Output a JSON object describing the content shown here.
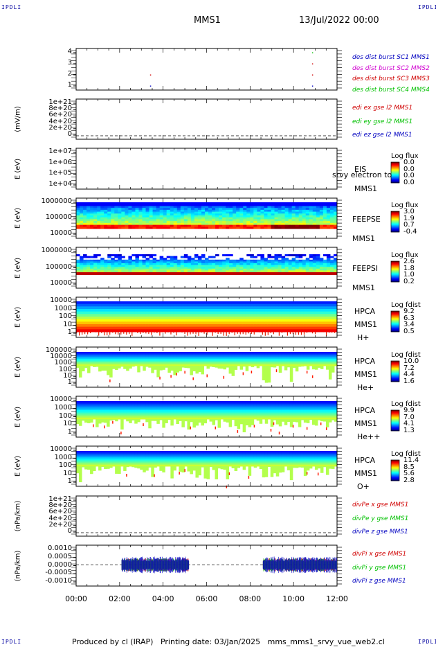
{
  "header": {
    "corner_left": "IPDLI",
    "corner_right": "IPDLI",
    "mission": "MMS1",
    "datetime": "13/Jul/2022 00:00"
  },
  "footer": {
    "text": "Produced by cl (IRAP)   Printing date: 03/Jan/2025   mms_mms1_srvy_vue_web2.cl"
  },
  "chart_data": {
    "type": "multi-panel",
    "x_ticks": [
      "00:00",
      "02:00",
      "04:00",
      "06:00",
      "08:00",
      "10:00",
      "12:00"
    ],
    "x_range_hours": [
      0,
      12
    ],
    "colors": {
      "red": "#d00000",
      "magenta": "#d000d0",
      "green": "#00c000",
      "blue": "#0000c0"
    },
    "panels": [
      {
        "id": "burst",
        "ylabel": "",
        "yticks": [
          "4",
          "3",
          "2",
          "1"
        ],
        "ylim": [
          0.5,
          4.5
        ],
        "legend": [
          {
            "text": "des dist burst SC1 MMS1",
            "color": "#0000c0"
          },
          {
            "text": "des dist burst SC2 MMS2",
            "color": "#d000d0"
          },
          {
            "text": "des dist burst SC3 MMS3",
            "color": "#d00000"
          },
          {
            "text": "des dist burst SC4 MMS4",
            "color": "#00c000"
          }
        ],
        "points": [
          {
            "t": 3.4,
            "y": 1,
            "sc": 1
          },
          {
            "t": 3.4,
            "y": 2,
            "sc": 3
          },
          {
            "t": 10.85,
            "y": 1,
            "sc": 1
          },
          {
            "t": 10.85,
            "y": 2,
            "sc": 3
          },
          {
            "t": 10.85,
            "y": 3,
            "sc": 3
          },
          {
            "t": 10.85,
            "y": 4,
            "sc": 4
          }
        ]
      },
      {
        "id": "edi",
        "ylabel": "(mV/m)",
        "yticks": [
          "1e+21",
          "8e+20",
          "6e+20",
          "4e+20",
          "2e+20",
          "0"
        ],
        "ylim": [
          0,
          1e+21
        ],
        "legend": [
          {
            "text": "edi ex gse l2 MMS1",
            "color": "#d00000"
          },
          {
            "text": "edi ey gse l2 MMS1",
            "color": "#00c000"
          },
          {
            "text": "edi ez gse l2 MMS1",
            "color": "#0000c0"
          }
        ]
      },
      {
        "id": "eis",
        "ylabel": "E (eV)",
        "yticks": [
          "1e+07",
          "1e+06",
          "1e+05",
          "1e+04"
        ],
        "labels": [
          "EIS",
          "srvy electron to",
          "MMS1"
        ],
        "cb_title": "Log flux",
        "cb_ticks": [
          "0.0",
          "0.0",
          "0.0",
          "0.0"
        ]
      },
      {
        "id": "feepse",
        "ylabel": "E (eV)",
        "yticks": [
          "1000000",
          "100000",
          "10000"
        ],
        "labels": [
          "FEEPSE",
          "MMS1"
        ],
        "cb_title": "Log flux",
        "cb_ticks": [
          "3.0",
          "1.9",
          "0.7",
          "-0.4"
        ]
      },
      {
        "id": "feepsi",
        "ylabel": "E (eV)",
        "yticks": [
          "1000000",
          "100000",
          "10000"
        ],
        "labels": [
          "FEEPSI",
          "MMS1"
        ],
        "cb_title": "Log flux",
        "cb_ticks": [
          "2.6",
          "1.8",
          "1.0",
          "0.2"
        ]
      },
      {
        "id": "hpca_h",
        "ylabel": "E (eV)",
        "yticks": [
          "10000",
          "1000",
          "100",
          "10",
          "1"
        ],
        "labels": [
          "HPCA",
          "MMS1",
          "H+"
        ],
        "cb_title": "Log fdist",
        "cb_ticks": [
          "9.2",
          "6.3",
          "3.4",
          "0.5"
        ]
      },
      {
        "id": "hpca_he",
        "ylabel": "E (eV)",
        "yticks": [
          "100000",
          "10000",
          "1000",
          "100",
          "10",
          "1"
        ],
        "labels": [
          "HPCA",
          "MMS1",
          "He+"
        ],
        "cb_title": "Log fdist",
        "cb_ticks": [
          "10.0",
          "7.2",
          "4.4",
          "1.6"
        ]
      },
      {
        "id": "hpca_hepp",
        "ylabel": "E (eV)",
        "yticks": [
          "10000",
          "1000",
          "100",
          "10",
          "1"
        ],
        "labels": [
          "HPCA",
          "MMS1",
          "He++"
        ],
        "cb_title": "Log fdist",
        "cb_ticks": [
          "9.9",
          "7.0",
          "4.1",
          "1.3"
        ]
      },
      {
        "id": "hpca_o",
        "ylabel": "E (eV)",
        "yticks": [
          "10000",
          "1000",
          "100",
          "10",
          "1"
        ],
        "labels": [
          "HPCA",
          "MMS1",
          "O+"
        ],
        "cb_title": "Log fdist",
        "cb_ticks": [
          "11.4",
          "8.5",
          "5.6",
          "2.8"
        ]
      },
      {
        "id": "divpe",
        "ylabel": "(nPa/km)",
        "yticks": [
          "1e+21",
          "8e+20",
          "6e+20",
          "4e+20",
          "2e+20",
          "0"
        ],
        "ylim": [
          0,
          1e+21
        ],
        "legend": [
          {
            "text": "divPe x gse MMS1",
            "color": "#d00000"
          },
          {
            "text": "divPe y gse MMS1",
            "color": "#00c000"
          },
          {
            "text": "divPe z gse MMS1",
            "color": "#0000c0"
          }
        ]
      },
      {
        "id": "divpi",
        "ylabel": "(nPa/km)",
        "yticks": [
          "0.0010",
          "0.0005",
          "0.0000",
          "-0.0005",
          "-0.0010"
        ],
        "ylim": [
          -0.00135,
          0.00135
        ],
        "legend": [
          {
            "text": "divPi x gse MMS1",
            "color": "#d00000"
          },
          {
            "text": "divPi y gse MMS1",
            "color": "#00c000"
          },
          {
            "text": "divPi z gse MMS1",
            "color": "#0000c0"
          }
        ],
        "data_intervals_hours": [
          [
            2.1,
            5.2
          ],
          [
            8.6,
            12.0
          ]
        ]
      }
    ]
  }
}
